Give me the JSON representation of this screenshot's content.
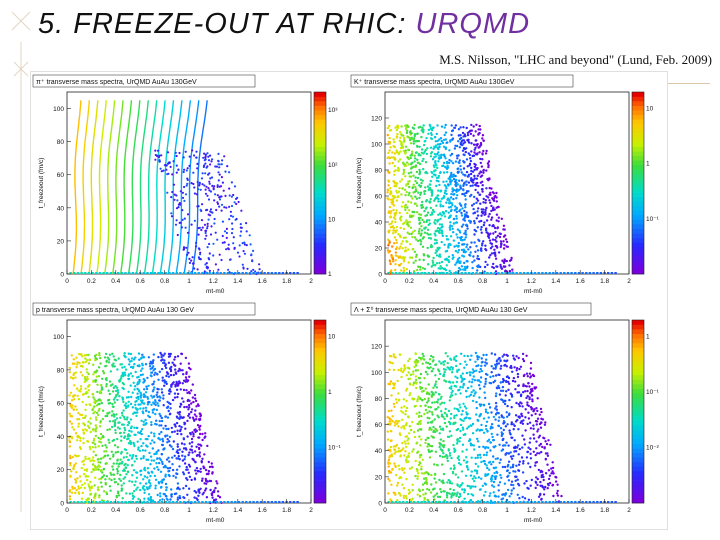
{
  "slide": {
    "number": "5.",
    "title_prefix": "FREEZE-OUT AT RHIC:",
    "title_highlight": "URQMD",
    "citation": "M.S. Nilsson, \"LHC and beyond\" (Lund, Feb. 2009)"
  },
  "colors": {
    "title_highlight": "#7030a0"
  },
  "chart_data": [
    {
      "type": "heatmap",
      "title": "π⁺ transverse mass spectra, UrQMD AuAu 130GeV",
      "xlabel": "mt-m0",
      "ylabel": "t_freezeout (fm/c)",
      "xlim": [
        0,
        2
      ],
      "ylim": [
        0,
        110
      ],
      "x_ticks": [
        "0",
        "0.2",
        "0.4",
        "0.6",
        "0.8",
        "1",
        "1.2",
        "1.4",
        "1.6",
        "1.8",
        "2"
      ],
      "y_ticks": [
        "0",
        "20",
        "40",
        "60",
        "80",
        "100"
      ],
      "colorbar_labels": [
        "1",
        "10",
        "10²",
        "10³"
      ],
      "z_scale": "log"
    },
    {
      "type": "heatmap",
      "title": "K⁺ transverse mass spectra, UrQMD AuAu 130GeV",
      "xlabel": "mt-m0",
      "ylabel": "t_freezeout (fm/c)",
      "xlim": [
        0,
        2
      ],
      "ylim": [
        0,
        140
      ],
      "x_ticks": [
        "0",
        "0.2",
        "0.4",
        "0.6",
        "0.8",
        "1",
        "1.2",
        "1.4",
        "1.6",
        "1.8",
        "2"
      ],
      "y_ticks": [
        "0",
        "20",
        "40",
        "60",
        "80",
        "100",
        "120"
      ],
      "colorbar_labels": [
        "10⁻¹",
        "1",
        "10"
      ],
      "z_scale": "log"
    },
    {
      "type": "heatmap",
      "title": "p transverse mass spectra, UrQMD AuAu 130 GeV",
      "xlabel": "mt-m0",
      "ylabel": "t_freezeout (fm/c)",
      "xlim": [
        0,
        2
      ],
      "ylim": [
        0,
        110
      ],
      "x_ticks": [
        "0",
        "0.2",
        "0.4",
        "0.6",
        "0.8",
        "1",
        "1.2",
        "1.4",
        "1.6",
        "1.8",
        "2"
      ],
      "y_ticks": [
        "0",
        "20",
        "40",
        "60",
        "80",
        "100"
      ],
      "colorbar_labels": [
        "10⁻¹",
        "1",
        "10"
      ],
      "z_scale": "log"
    },
    {
      "type": "heatmap",
      "title": "Λ + Σ⁰ transverse mass spectra, UrQMD AuAu 130 GeV",
      "xlabel": "mt-m0",
      "ylabel": "t_freezeout (fm/c)",
      "xlim": [
        0,
        2
      ],
      "ylim": [
        0,
        140
      ],
      "x_ticks": [
        "0",
        "0.2",
        "0.4",
        "0.6",
        "0.8",
        "1",
        "1.2",
        "1.4",
        "1.6",
        "1.8",
        "2"
      ],
      "y_ticks": [
        "0",
        "20",
        "40",
        "60",
        "80",
        "100",
        "120"
      ],
      "colorbar_labels": [
        "10⁻²",
        "10⁻¹",
        "1"
      ],
      "z_scale": "log"
    }
  ]
}
